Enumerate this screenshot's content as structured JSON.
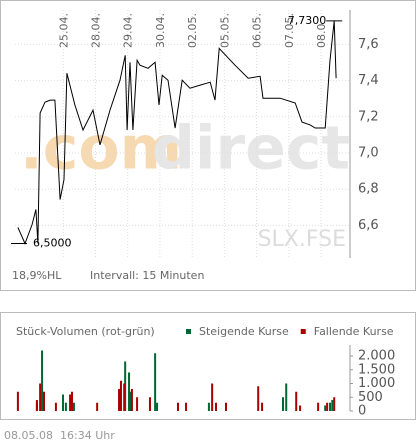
{
  "chart_data": [
    {
      "type": "line",
      "watermark": [
        ".com",
        "direct"
      ],
      "symbol": "SLX.FSE",
      "stats": "18,9%HL",
      "interval": "Intervall: 15 Minuten",
      "high": {
        "value": 7.73,
        "label": "7,7300"
      },
      "low": {
        "value": 6.5,
        "label": "6,5000"
      },
      "xlim": [
        -0.5,
        9.9
      ],
      "xticks": [
        {
          "value": 1,
          "label": "25.04."
        },
        {
          "value": 2,
          "label": "28.04."
        },
        {
          "value": 3,
          "label": "29.04."
        },
        {
          "value": 4,
          "label": "30.04."
        },
        {
          "value": 5,
          "label": "02.05."
        },
        {
          "value": 6,
          "label": "05.05."
        },
        {
          "value": 7,
          "label": "06.05."
        },
        {
          "value": 8,
          "label": "07.05."
        },
        {
          "value": 9,
          "label": "08.0"
        }
      ],
      "ylim": [
        6.42,
        7.79
      ],
      "yticks": [
        {
          "value": 6.6,
          "label": "6,6"
        },
        {
          "value": 6.8,
          "label": "6,8"
        },
        {
          "value": 7.0,
          "label": "7,0"
        },
        {
          "value": 7.2,
          "label": "7,2"
        },
        {
          "value": 7.4,
          "label": "7,4"
        },
        {
          "value": 7.6,
          "label": "7,6"
        }
      ],
      "grid": true,
      "color": "#000000",
      "x": [
        -0.41,
        -0.19,
        0.03,
        0.15,
        0.21,
        0.28,
        0.43,
        0.59,
        0.74,
        0.9,
        1.02,
        1.11,
        1.36,
        1.61,
        1.92,
        2.14,
        2.45,
        2.76,
        2.92,
        2.98,
        3.07,
        3.16,
        3.29,
        3.38,
        3.63,
        3.85,
        3.97,
        4.07,
        4.25,
        4.47,
        4.69,
        4.93,
        5.25,
        5.56,
        5.71,
        5.84,
        6.33,
        6.74,
        7.11,
        7.2,
        7.73,
        8.2,
        8.41,
        8.66,
        8.82,
        9.13,
        9.28,
        9.41,
        9.47
      ],
      "values": [
        6.589,
        6.5,
        6.605,
        6.688,
        6.5,
        7.221,
        7.281,
        7.292,
        7.292,
        6.743,
        6.853,
        7.441,
        7.265,
        7.127,
        7.237,
        7.045,
        7.237,
        7.402,
        7.54,
        7.127,
        7.501,
        7.127,
        7.512,
        7.485,
        7.468,
        7.501,
        7.265,
        7.43,
        7.402,
        7.138,
        7.402,
        7.358,
        7.375,
        7.391,
        7.292,
        7.578,
        7.485,
        7.413,
        7.424,
        7.303,
        7.303,
        7.276,
        7.171,
        7.155,
        7.138,
        7.138,
        7.512,
        7.73,
        7.413
      ]
    },
    {
      "type": "bar",
      "title": "Stück-Volumen (rot-grün)",
      "xlim": [
        -0.5,
        9.9
      ],
      "ylim": [
        0,
        2400
      ],
      "yticks": [
        0,
        500,
        {
          "value": 1000,
          "label": "1.000"
        },
        {
          "value": 1500,
          "label": "1.500"
        },
        {
          "value": 2000,
          "label": "2.000"
        }
      ],
      "series": [
        {
          "name": "Steigende Kurse",
          "color": "#006633",
          "x": [
            0.18,
            0.34,
            0.99,
            1.08,
            1.33,
            2.92,
            3.04,
            3.1,
            3.85,
            3.91,
            5.52,
            7.82,
            7.92,
            9.13,
            9.28,
            9.35
          ],
          "values": [
            300,
            2200,
            600,
            300,
            300,
            1800,
            1400,
            700,
            2100,
            300,
            300,
            500,
            1000,
            200,
            300,
            400
          ]
        },
        {
          "name": "Fallende Kurse",
          "color": "#aa0000",
          "x": [
            -0.41,
            0.18,
            0.28,
            0.4,
            0.77,
            1.21,
            1.27,
            2.05,
            2.73,
            2.79,
            2.89,
            3.13,
            3.29,
            3.69,
            4.56,
            4.81,
            5.62,
            5.74,
            6.05,
            7.05,
            7.17,
            8.23,
            8.35,
            8.91,
            9.19,
            9.41
          ],
          "values": [
            700,
            400,
            1000,
            700,
            300,
            600,
            700,
            300,
            800,
            1100,
            1000,
            800,
            500,
            500,
            300,
            300,
            1000,
            300,
            300,
            900,
            300,
            700,
            200,
            300,
            300,
            500
          ]
        }
      ]
    }
  ],
  "footer": {
    "date": "08.05.08",
    "time": "16:34 Uhr"
  }
}
